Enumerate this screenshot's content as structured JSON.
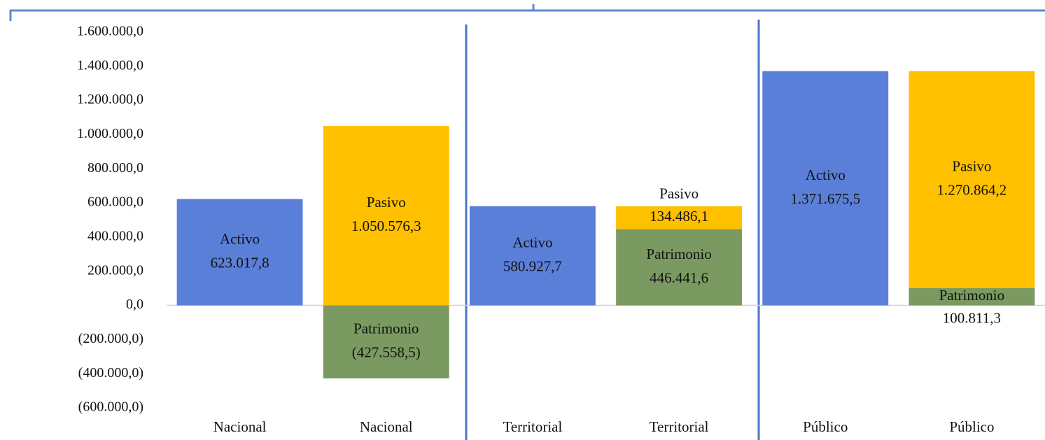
{
  "chart_data": {
    "type": "bar",
    "stacked": true,
    "categories": [
      "Nacional",
      "Nacional",
      "Territorial",
      "Territorial",
      "Público",
      "Público"
    ],
    "series": [
      {
        "name": "Activo",
        "color": "#5a7fd8",
        "values": [
          623017.8,
          null,
          580927.7,
          null,
          1371675.5,
          null
        ],
        "value_labels": [
          "623.017,8",
          null,
          "580.927,7",
          null,
          "1.371.675,5",
          null
        ]
      },
      {
        "name": "Patrimonio",
        "color": "#7b9a61",
        "values": [
          null,
          -427558.5,
          null,
          446441.6,
          null,
          100811.3
        ],
        "value_labels": [
          null,
          "(427.558,5)",
          null,
          "446.441,6",
          null,
          "100.811,3"
        ]
      },
      {
        "name": "Pasivo",
        "color": "#ffc000",
        "values": [
          null,
          1050576.3,
          null,
          134486.1,
          null,
          1270864.2
        ],
        "value_labels": [
          null,
          "1.050.576,3",
          null,
          "134.486,1",
          null,
          "1.270.864,2"
        ]
      }
    ],
    "ylim": [
      -600000,
      1600000
    ],
    "yticks": [
      {
        "value": -600000,
        "label": "(600.000,0)"
      },
      {
        "value": -400000,
        "label": "(400.000,0)"
      },
      {
        "value": -200000,
        "label": "(200.000,0)"
      },
      {
        "value": 0,
        "label": "0,0"
      },
      {
        "value": 200000,
        "label": "200.000,0"
      },
      {
        "value": 400000,
        "label": "400.000,0"
      },
      {
        "value": 600000,
        "label": "600.000,0"
      },
      {
        "value": 800000,
        "label": "800.000,0"
      },
      {
        "value": 1000000,
        "label": "1.000.000,0"
      },
      {
        "value": 1200000,
        "label": "1.200.000,0"
      },
      {
        "value": 1400000,
        "label": "1.400.000,0"
      },
      {
        "value": 1600000,
        "label": "1.600.000,0"
      }
    ],
    "grid": false
  }
}
